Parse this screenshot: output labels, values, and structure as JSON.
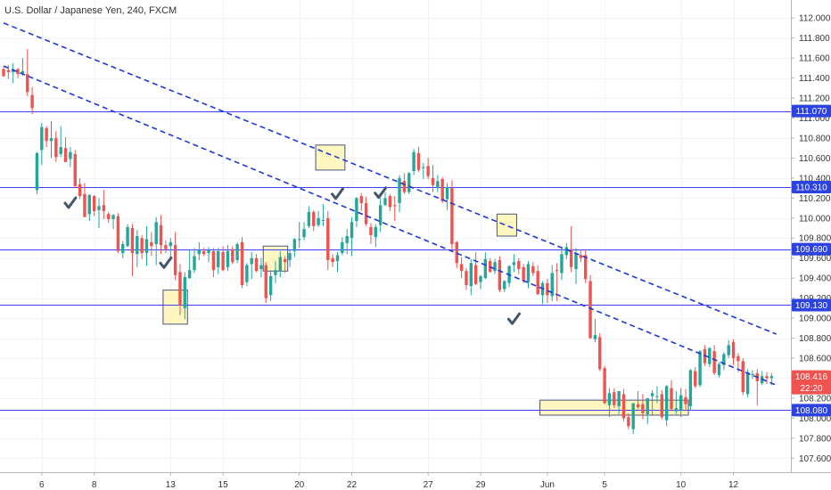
{
  "chart_data": {
    "type": "candlestick",
    "title": "U.S. Dollar / Japanese Yen, 240, FXCM",
    "ylim": [
      107.46,
      112.18
    ],
    "y_ticks": [
      "112.000",
      "111.800",
      "111.600",
      "111.400",
      "111.200",
      "111.000",
      "110.800",
      "110.600",
      "110.400",
      "110.200",
      "110.000",
      "109.800",
      "109.600",
      "109.400",
      "109.200",
      "109.000",
      "108.800",
      "108.600",
      "108.400",
      "108.200",
      "108.000",
      "107.800",
      "107.600"
    ],
    "y_tick_values": [
      112.0,
      111.8,
      111.6,
      111.4,
      111.2,
      111.0,
      110.8,
      110.6,
      110.4,
      110.2,
      110.0,
      109.8,
      109.6,
      109.4,
      109.2,
      109.0,
      108.8,
      108.6,
      108.4,
      108.2,
      108.0,
      107.8,
      107.6
    ],
    "x_ticks": [
      "6",
      "8",
      "13",
      "15",
      "20",
      "22",
      "27",
      "29",
      "Jun",
      "5",
      "10",
      "12"
    ],
    "x_tick_index": [
      8,
      19,
      35,
      46,
      62,
      73,
      89,
      100,
      114,
      126,
      142,
      153
    ],
    "bar_count": 162,
    "levels": [
      {
        "value": 111.07,
        "label": "111.070"
      },
      {
        "value": 110.31,
        "label": "110.310"
      },
      {
        "value": 109.69,
        "label": "109.690"
      },
      {
        "value": 109.13,
        "label": "109.130"
      },
      {
        "value": 108.08,
        "label": "108.080"
      }
    ],
    "trendlines": [
      {
        "from": [
          0,
          111.95
        ],
        "to": [
          162,
          108.84
        ]
      },
      {
        "from": [
          0,
          111.52
        ],
        "to": [
          162,
          108.33
        ]
      }
    ],
    "highlight_boxes": [
      {
        "x0": 34,
        "x1": 38,
        "y0": 109.28,
        "y1": 108.94
      },
      {
        "x0": 55,
        "x1": 59,
        "y0": 109.72,
        "y1": 109.47
      },
      {
        "x0": 66,
        "x1": 71,
        "y0": 110.73,
        "y1": 110.48
      },
      {
        "x0": 104,
        "x1": 107,
        "y0": 110.04,
        "y1": 109.82
      },
      {
        "x0": 113,
        "x1": 143,
        "y0": 108.18,
        "y1": 108.03
      }
    ],
    "checkmarks": [
      {
        "x": 14,
        "y": 110.15
      },
      {
        "x": 34,
        "y": 109.55
      },
      {
        "x": 70,
        "y": 110.24
      },
      {
        "x": 79,
        "y": 110.25
      },
      {
        "x": 107,
        "y": 108.99
      }
    ],
    "last_price": {
      "value": 108.416,
      "label": "108.416",
      "timer": "22:20"
    },
    "colors": {
      "up": "#26a69a",
      "down": "#ef5350",
      "level": "#3d3dff",
      "trend": "#1d38d6",
      "box_fill": "#fff6b5",
      "box_stroke": "#4a5580",
      "check": "#44566c",
      "badge": "#2d43e0"
    },
    "ohlc": [
      [
        111.49,
        111.51,
        111.41,
        111.42
      ],
      [
        111.48,
        111.53,
        111.39,
        111.46
      ],
      [
        111.46,
        111.55,
        111.35,
        111.49
      ],
      [
        111.49,
        111.5,
        111.4,
        111.44
      ],
      [
        111.45,
        111.6,
        111.42,
        111.47
      ],
      [
        111.44,
        111.69,
        111.22,
        111.26
      ],
      [
        111.23,
        111.31,
        111.04,
        111.1
      ],
      [
        110.28,
        110.66,
        110.24,
        110.65
      ],
      [
        110.68,
        110.95,
        110.53,
        110.91
      ],
      [
        110.9,
        110.92,
        110.71,
        110.77
      ],
      [
        110.77,
        110.97,
        110.6,
        110.8
      ],
      [
        110.8,
        110.87,
        110.56,
        110.61
      ],
      [
        110.64,
        110.92,
        110.61,
        110.71
      ],
      [
        110.7,
        110.81,
        110.56,
        110.56
      ],
      [
        110.59,
        110.71,
        110.51,
        110.66
      ],
      [
        110.64,
        110.68,
        110.3,
        110.32
      ],
      [
        110.34,
        110.4,
        110.19,
        110.22
      ],
      [
        110.24,
        110.35,
        110.01,
        110.01
      ],
      [
        110.04,
        110.24,
        109.97,
        110.23
      ],
      [
        110.22,
        110.23,
        110.02,
        110.07
      ],
      [
        110.08,
        110.2,
        109.9,
        110.12
      ],
      [
        110.13,
        110.28,
        109.99,
        110.07
      ],
      [
        110.04,
        110.06,
        109.95,
        109.99
      ],
      [
        109.99,
        110.04,
        109.89,
        110.03
      ],
      [
        110.02,
        110.05,
        109.65,
        109.67
      ],
      [
        109.65,
        109.77,
        109.6,
        109.74
      ],
      [
        109.72,
        109.94,
        109.71,
        109.91
      ],
      [
        109.9,
        109.94,
        109.42,
        109.65
      ],
      [
        109.64,
        109.88,
        109.51,
        109.82
      ],
      [
        109.8,
        109.83,
        109.59,
        109.65
      ],
      [
        109.65,
        109.92,
        109.52,
        109.79
      ],
      [
        109.76,
        109.86,
        109.62,
        109.72
      ],
      [
        109.74,
        110.01,
        109.53,
        109.96
      ],
      [
        109.93,
        110.03,
        109.64,
        109.73
      ],
      [
        109.73,
        109.78,
        109.65,
        109.69
      ],
      [
        109.72,
        109.8,
        109.59,
        109.76
      ],
      [
        109.73,
        109.86,
        109.38,
        109.43
      ],
      [
        109.46,
        109.54,
        109.03,
        109.13
      ],
      [
        109.1,
        109.46,
        108.99,
        109.41
      ],
      [
        109.4,
        109.68,
        109.39,
        109.48
      ],
      [
        109.48,
        109.7,
        109.45,
        109.62
      ],
      [
        109.64,
        109.76,
        109.58,
        109.68
      ],
      [
        109.67,
        109.7,
        109.62,
        109.64
      ],
      [
        109.65,
        109.71,
        109.56,
        109.68
      ],
      [
        109.67,
        109.7,
        109.41,
        109.48
      ],
      [
        109.51,
        109.7,
        109.44,
        109.67
      ],
      [
        109.66,
        109.72,
        109.47,
        109.48
      ],
      [
        109.51,
        109.73,
        109.47,
        109.67
      ],
      [
        109.69,
        109.72,
        109.54,
        109.56
      ],
      [
        109.58,
        109.76,
        109.55,
        109.74
      ],
      [
        109.76,
        109.81,
        109.3,
        109.33
      ],
      [
        109.36,
        109.55,
        109.32,
        109.53
      ],
      [
        109.54,
        109.66,
        109.39,
        109.6
      ],
      [
        109.6,
        109.64,
        109.46,
        109.47
      ],
      [
        109.49,
        109.6,
        109.41,
        109.53
      ],
      [
        109.53,
        109.56,
        109.15,
        109.2
      ],
      [
        109.23,
        109.48,
        109.17,
        109.42
      ],
      [
        109.43,
        109.57,
        109.35,
        109.48
      ],
      [
        109.47,
        109.67,
        109.41,
        109.61
      ],
      [
        109.59,
        109.62,
        109.45,
        109.56
      ],
      [
        109.58,
        109.68,
        109.51,
        109.65
      ],
      [
        109.67,
        109.8,
        109.61,
        109.79
      ],
      [
        109.78,
        109.96,
        109.7,
        109.79
      ],
      [
        109.81,
        109.96,
        109.78,
        109.89
      ],
      [
        109.92,
        110.12,
        109.9,
        110.06
      ],
      [
        110.06,
        110.08,
        109.87,
        109.92
      ],
      [
        109.93,
        110.07,
        109.91,
        110.0
      ],
      [
        109.98,
        110.14,
        109.92,
        109.98
      ],
      [
        110.0,
        110.07,
        109.48,
        109.58
      ],
      [
        109.6,
        109.64,
        109.51,
        109.56
      ],
      [
        109.57,
        109.66,
        109.46,
        109.63
      ],
      [
        109.65,
        109.81,
        109.63,
        109.76
      ],
      [
        109.75,
        109.89,
        109.64,
        109.82
      ],
      [
        109.8,
        110.01,
        109.62,
        109.96
      ],
      [
        109.97,
        110.21,
        109.91,
        110.2
      ],
      [
        110.22,
        110.25,
        110.07,
        110.15
      ],
      [
        110.15,
        110.21,
        109.92,
        109.94
      ],
      [
        109.91,
        109.95,
        109.74,
        109.83
      ],
      [
        109.81,
        109.94,
        109.71,
        109.91
      ],
      [
        109.93,
        110.2,
        109.86,
        110.13
      ],
      [
        110.13,
        110.26,
        110.12,
        110.2
      ],
      [
        110.22,
        110.24,
        110.07,
        110.11
      ],
      [
        110.13,
        110.22,
        109.97,
        110.12
      ],
      [
        110.15,
        110.43,
        110.06,
        110.4
      ],
      [
        110.37,
        110.45,
        110.24,
        110.26
      ],
      [
        110.26,
        110.46,
        110.24,
        110.45
      ],
      [
        110.47,
        110.69,
        110.43,
        110.66
      ],
      [
        110.65,
        110.71,
        110.46,
        110.48
      ],
      [
        110.5,
        110.55,
        110.39,
        110.51
      ],
      [
        110.52,
        110.6,
        110.39,
        110.42
      ],
      [
        110.4,
        110.53,
        110.26,
        110.33
      ],
      [
        110.3,
        110.43,
        110.26,
        110.37
      ],
      [
        110.39,
        110.41,
        110.15,
        110.17
      ],
      [
        110.19,
        110.35,
        110.08,
        110.31
      ],
      [
        110.3,
        110.38,
        109.68,
        109.74
      ],
      [
        109.76,
        109.77,
        109.5,
        109.55
      ],
      [
        109.54,
        109.61,
        109.4,
        109.47
      ],
      [
        109.47,
        109.5,
        109.28,
        109.33
      ],
      [
        109.32,
        109.59,
        109.23,
        109.55
      ],
      [
        109.53,
        109.66,
        109.33,
        109.34
      ],
      [
        109.36,
        109.43,
        109.29,
        109.42
      ],
      [
        109.4,
        109.66,
        109.39,
        109.59
      ],
      [
        109.57,
        109.6,
        109.46,
        109.46
      ],
      [
        109.47,
        109.59,
        109.44,
        109.56
      ],
      [
        109.58,
        109.62,
        109.26,
        109.28
      ],
      [
        109.29,
        109.38,
        109.26,
        109.37
      ],
      [
        109.35,
        109.53,
        109.31,
        109.52
      ],
      [
        109.53,
        109.64,
        109.46,
        109.56
      ],
      [
        109.57,
        109.6,
        109.44,
        109.49
      ],
      [
        109.51,
        109.54,
        109.35,
        109.37
      ],
      [
        109.36,
        109.57,
        109.3,
        109.54
      ],
      [
        109.52,
        109.56,
        109.42,
        109.45
      ],
      [
        109.47,
        109.53,
        109.23,
        109.24
      ],
      [
        109.23,
        109.37,
        109.14,
        109.35
      ],
      [
        109.35,
        109.39,
        109.15,
        109.23
      ],
      [
        109.22,
        109.53,
        109.17,
        109.45
      ],
      [
        109.48,
        109.55,
        109.17,
        109.47
      ],
      [
        109.45,
        109.7,
        109.38,
        109.64
      ],
      [
        109.63,
        109.75,
        109.59,
        109.71
      ],
      [
        109.69,
        109.92,
        109.46,
        109.51
      ],
      [
        109.49,
        109.7,
        109.34,
        109.65
      ],
      [
        109.63,
        109.69,
        109.56,
        109.6
      ],
      [
        109.63,
        109.68,
        109.35,
        109.39
      ],
      [
        109.37,
        109.43,
        108.79,
        108.8
      ],
      [
        108.79,
        108.99,
        108.76,
        108.83
      ],
      [
        108.81,
        108.85,
        108.47,
        108.49
      ],
      [
        108.5,
        108.52,
        108.14,
        108.15
      ],
      [
        108.13,
        108.3,
        108.01,
        108.25
      ],
      [
        108.26,
        108.3,
        108.1,
        108.13
      ],
      [
        108.12,
        108.27,
        108.04,
        108.27
      ],
      [
        108.24,
        108.29,
        107.97,
        108.0
      ],
      [
        108.01,
        108.05,
        107.89,
        107.92
      ],
      [
        107.89,
        108.15,
        107.84,
        108.15
      ],
      [
        108.14,
        108.27,
        108.09,
        108.11
      ],
      [
        108.14,
        108.24,
        107.99,
        108.05
      ],
      [
        108.04,
        108.2,
        107.94,
        108.2
      ],
      [
        108.22,
        108.28,
        108.03,
        108.25
      ],
      [
        108.22,
        108.32,
        108.15,
        108.22
      ],
      [
        108.24,
        108.28,
        107.99,
        108.01
      ],
      [
        107.98,
        108.33,
        107.92,
        108.32
      ],
      [
        108.3,
        108.38,
        108.07,
        108.09
      ],
      [
        108.07,
        108.27,
        108.04,
        108.1
      ],
      [
        108.08,
        108.3,
        108.01,
        108.23
      ],
      [
        108.21,
        108.29,
        108.07,
        108.14
      ],
      [
        108.12,
        108.49,
        108.08,
        108.48
      ],
      [
        108.47,
        108.51,
        108.3,
        108.32
      ],
      [
        108.33,
        108.68,
        108.31,
        108.67
      ],
      [
        108.69,
        108.73,
        108.52,
        108.55
      ],
      [
        108.54,
        108.71,
        108.51,
        108.7
      ],
      [
        108.67,
        108.73,
        108.43,
        108.45
      ],
      [
        108.43,
        108.56,
        108.41,
        108.54
      ],
      [
        108.53,
        108.66,
        108.48,
        108.64
      ],
      [
        108.63,
        108.78,
        108.6,
        108.73
      ],
      [
        108.76,
        108.79,
        108.53,
        108.6
      ],
      [
        108.62,
        108.65,
        108.46,
        108.57
      ],
      [
        108.57,
        108.6,
        108.23,
        108.26
      ],
      [
        108.24,
        108.49,
        108.21,
        108.46
      ],
      [
        108.43,
        108.48,
        108.39,
        108.44
      ],
      [
        108.45,
        108.49,
        108.13,
        108.37
      ],
      [
        108.35,
        108.47,
        108.33,
        108.42
      ],
      [
        108.42,
        108.46,
        108.34,
        108.4
      ],
      [
        108.4,
        108.45,
        108.33,
        108.42
      ]
    ]
  }
}
